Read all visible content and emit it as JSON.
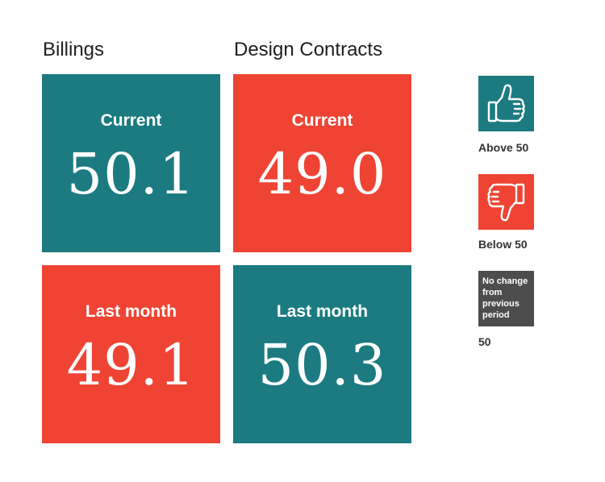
{
  "colors": {
    "above": "#1b7b80",
    "below": "#ef4434",
    "neutral": "#4d4d4d"
  },
  "chart_data": {
    "type": "table",
    "columns": [
      "Billings",
      "Design Contracts"
    ],
    "rows": [
      "Current",
      "Last month"
    ],
    "values": [
      [
        50.1,
        49.0
      ],
      [
        49.1,
        50.3
      ]
    ],
    "display_values": [
      [
        "50.1",
        "49.0"
      ],
      [
        "49.1",
        "50.3"
      ]
    ],
    "threshold": 50
  },
  "billings": {
    "title": "Billings",
    "current": {
      "label": "Current",
      "value": "50.1",
      "status": "above"
    },
    "last_month": {
      "label": "Last month",
      "value": "49.1",
      "status": "below"
    }
  },
  "design_contracts": {
    "title": "Design Contracts",
    "current": {
      "label": "Current",
      "value": "49.0",
      "status": "below"
    },
    "last_month": {
      "label": "Last month",
      "value": "50.3",
      "status": "above"
    }
  },
  "legend": {
    "above": {
      "label": "Above 50",
      "icon": "thumbs-up-icon"
    },
    "below": {
      "label": "Below 50",
      "icon": "thumbs-down-icon"
    },
    "no_change": {
      "box_text": "No change from previous period",
      "label": "50"
    }
  }
}
